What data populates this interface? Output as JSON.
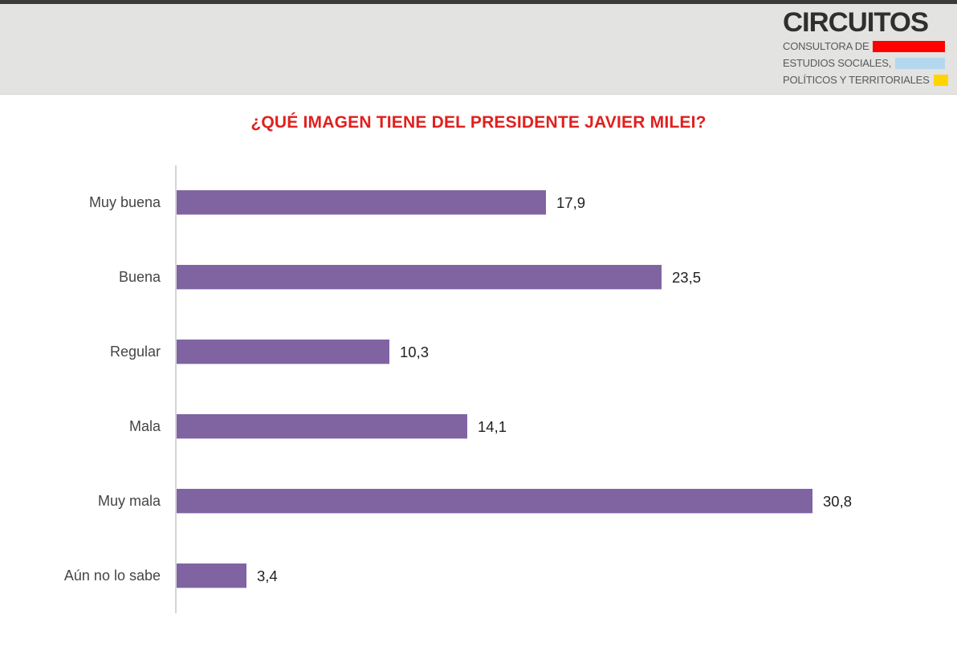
{
  "header": {
    "brand": "CIRCUITOS",
    "taglines": [
      {
        "text": "CONSULTORA DE",
        "swatch_color": "#fe0000",
        "swatch_name": "red-swatch"
      },
      {
        "text": "ESTUDIOS SOCIALES,",
        "swatch_color": "#b4d7ee",
        "swatch_name": "lightblue-swatch"
      },
      {
        "text": "POLÍTICOS Y TERRITORIALES",
        "swatch_color": "#ffd400",
        "swatch_name": "yellow-swatch"
      }
    ]
  },
  "title": "¿QUÉ IMAGEN TIENE DEL PRESIDENTE JAVIER MILEI?",
  "colors": {
    "title_red": "#e0201e",
    "bar_purple": "#8064a2",
    "axis_gray": "#d5d5d5",
    "header_gray": "#e3e3e2",
    "top_strip": "#3b3b3b"
  },
  "chart_data": {
    "type": "bar",
    "orientation": "horizontal",
    "title": "¿QUÉ IMAGEN TIENE DEL PRESIDENTE JAVIER MILEI?",
    "categories": [
      "Muy buena",
      "Buena",
      "Regular",
      "Mala",
      "Muy mala",
      "Aún no lo sabe"
    ],
    "values": [
      17.9,
      23.5,
      10.3,
      14.1,
      30.8,
      3.4
    ],
    "value_labels": [
      "17,9",
      "23,5",
      "10,3",
      "14,1",
      "30,8",
      "3,4"
    ],
    "bar_color": "#8064a2",
    "xlim": [
      0,
      35
    ],
    "grid": false,
    "legend": false,
    "value_decimal_separator": ","
  }
}
